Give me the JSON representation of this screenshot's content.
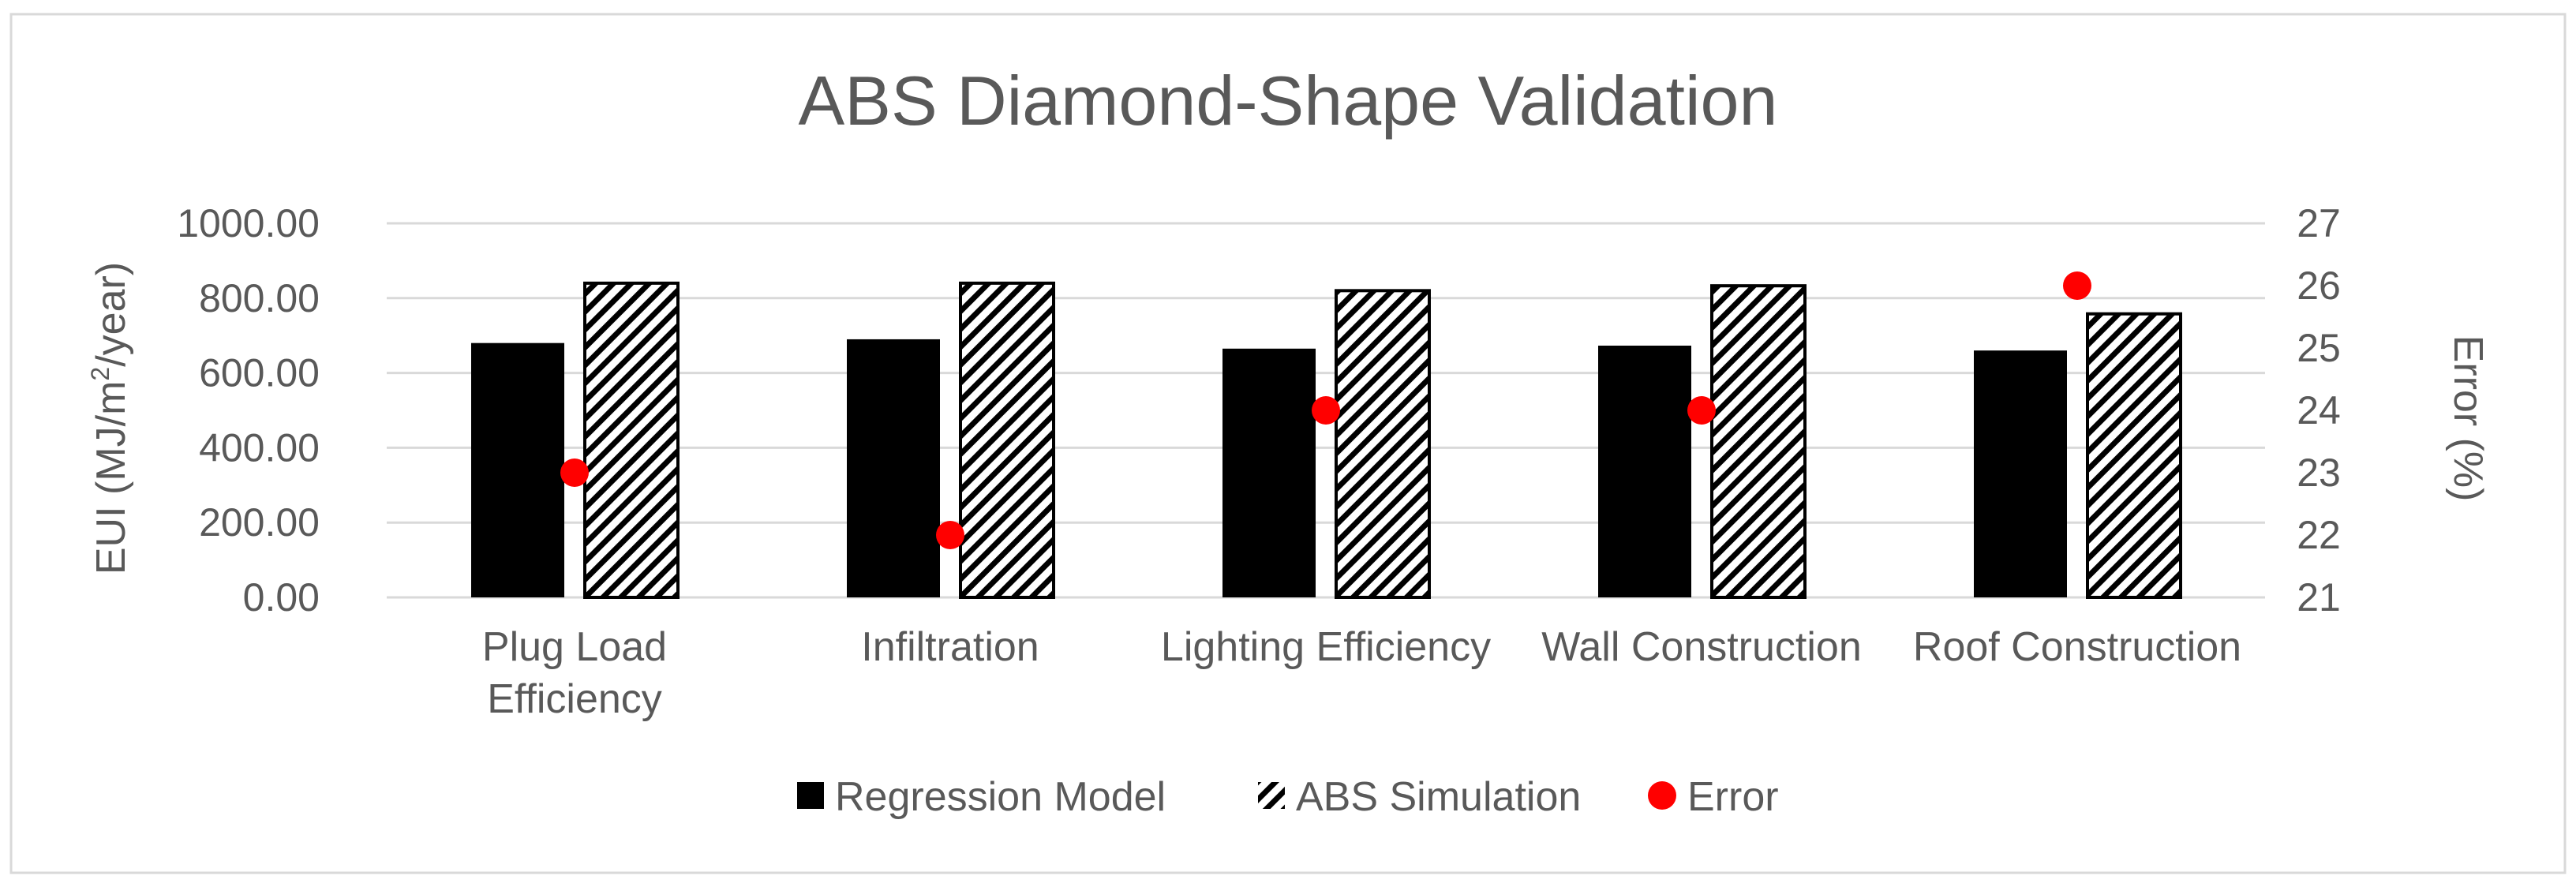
{
  "chart_data": {
    "type": "bar",
    "title": "ABS Diamond-Shape Validation",
    "categories": [
      [
        "Plug Load",
        "Efficiency"
      ],
      [
        "Infiltration"
      ],
      [
        "Lighting Efficiency"
      ],
      [
        "Wall Construction"
      ],
      [
        "Roof Construction"
      ]
    ],
    "series": [
      {
        "name": "Regression Model",
        "kind": "bar",
        "axis": "left",
        "color": "#000000",
        "values": [
          680,
          690,
          665,
          673,
          660
        ]
      },
      {
        "name": "ABS Simulation",
        "kind": "bar",
        "axis": "left",
        "pattern": "diagonal-hatch",
        "values": [
          840,
          840,
          820,
          833,
          758
        ]
      },
      {
        "name": "Error",
        "kind": "scatter",
        "axis": "right",
        "color": "#ff0000",
        "values": [
          23,
          22,
          24,
          24,
          26
        ]
      }
    ],
    "y_left": {
      "label_prefix": "EUI (MJ/m",
      "label_sup": "2",
      "label_suffix": "/year)",
      "ylim": [
        0,
        1000
      ],
      "ticks": [
        "0.00",
        "200.00",
        "400.00",
        "600.00",
        "800.00",
        "1000.00"
      ]
    },
    "y_right": {
      "label": "Error (%)",
      "ylim": [
        21,
        27
      ],
      "ticks": [
        "21",
        "22",
        "23",
        "24",
        "25",
        "26",
        "27"
      ]
    },
    "grid": true,
    "legend_position": "bottom",
    "colors": {
      "text": "#595959",
      "grid": "#d9d9d9",
      "border": "#d9d9d9",
      "error": "#ff0000",
      "bar": "#000000"
    }
  }
}
